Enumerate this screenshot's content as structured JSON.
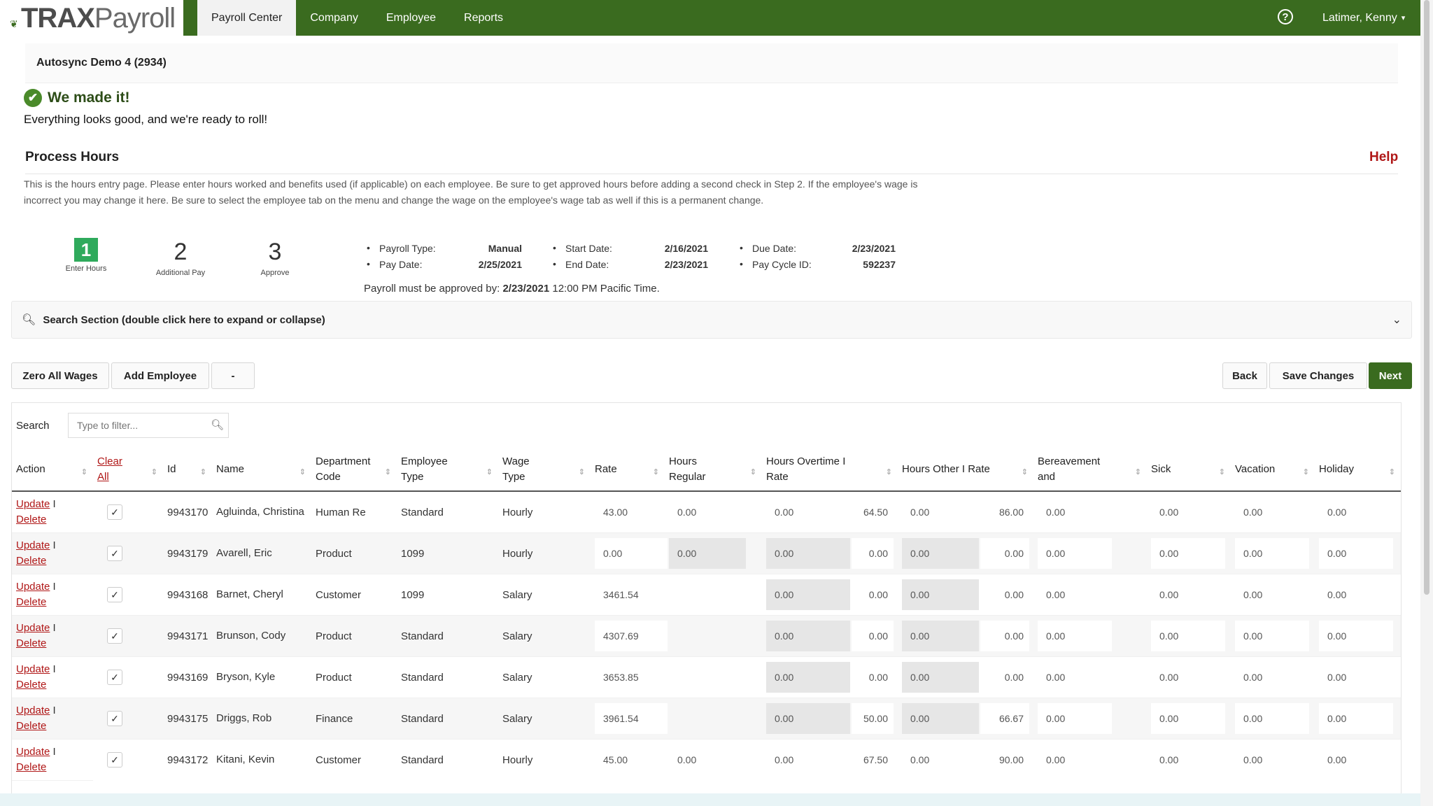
{
  "header": {
    "logo_bold": "TRAX",
    "logo_light": "Payroll",
    "nav": [
      "Payroll Center",
      "Company",
      "Employee",
      "Reports"
    ],
    "help_glyph": "?",
    "user": "Latimer, Kenny"
  },
  "company": "Autosync Demo 4 (2934)",
  "success": {
    "title": "We made it!",
    "subtitle": "Everything looks good, and we're ready to roll!"
  },
  "section": {
    "title": "Process Hours",
    "help": "Help",
    "description": "This is the hours entry page. Please enter hours worked and benefits used (if applicable) on each employee. Be sure to get approved hours before adding a second check in Step 2. If the employee's wage is incorrect you may change it here. Be sure to select the employee tab on the menu and change the wage on the employee's wage tab as well if this is a permanent change."
  },
  "steps": [
    {
      "num": "1",
      "label": "Enter Hours"
    },
    {
      "num": "2",
      "label": "Additional Pay"
    },
    {
      "num": "3",
      "label": "Approve"
    }
  ],
  "payroll_info": {
    "payroll_type_label": "Payroll Type:",
    "payroll_type": "Manual",
    "pay_date_label": "Pay Date:",
    "pay_date": "2/25/2021",
    "start_date_label": "Start Date:",
    "start_date": "2/16/2021",
    "end_date_label": "End Date:",
    "end_date": "2/23/2021",
    "due_date_label": "Due Date:",
    "due_date": "2/23/2021",
    "pay_cycle_label": "Pay Cycle ID:",
    "pay_cycle": "592237",
    "approve_prefix": "Payroll must be approved by:",
    "approve_date": "2/23/2021",
    "approve_suffix": "12:00 PM Pacific Time."
  },
  "search_section": "Search Section (double click here to expand or collapse)",
  "toolbar": {
    "zero_wages": "Zero All Wages",
    "add_employee": "Add Employee",
    "dropdown": "-",
    "back": "Back",
    "save": "Save Changes",
    "next": "Next"
  },
  "filter": {
    "label": "Search",
    "placeholder": "Type to filter..."
  },
  "table": {
    "headers": {
      "action": "Action",
      "clear_all": "Clear All",
      "id": "Id",
      "name": "Name",
      "dept": "Department Code",
      "emp_type": "Employee Type",
      "wage_type": "Wage Type",
      "rate": "Rate",
      "hours_regular": "Hours Regular",
      "hours_ot": "Hours Overtime I Rate",
      "hours_other": "Hours Other I Rate",
      "bereavement": "Bereavement and",
      "sick": "Sick",
      "vacation": "Vacation",
      "holiday": "Holiday"
    },
    "update_label": "Update",
    "delete_label": "Delete",
    "rows": [
      {
        "id": "9943170",
        "name": "Agluinda, Christina",
        "dept": "Human Re",
        "emp_type": "Standard",
        "wage_type": "Hourly",
        "rate": "43.00",
        "hours_regular": "0.00",
        "ot_hours": "0.00",
        "ot_rate": "64.50",
        "other_hours": "0.00",
        "other_rate": "86.00",
        "bereavement": "0.00",
        "sick": "0.00",
        "vacation": "0.00",
        "holiday": "0.00"
      },
      {
        "id": "9943179",
        "name": "Avarell, Eric",
        "dept": "Product",
        "emp_type": "1099",
        "wage_type": "Hourly",
        "rate": "0.00",
        "hours_regular": "0.00",
        "ot_hours": "0.00",
        "ot_rate": "0.00",
        "other_hours": "0.00",
        "other_rate": "0.00",
        "bereavement": "0.00",
        "sick": "0.00",
        "vacation": "0.00",
        "holiday": "0.00"
      },
      {
        "id": "9943168",
        "name": "Barnet, Cheryl",
        "dept": "Customer",
        "emp_type": "1099",
        "wage_type": "Salary",
        "rate": "3461.54",
        "hours_regular": "",
        "ot_hours": "0.00",
        "ot_rate": "0.00",
        "other_hours": "0.00",
        "other_rate": "0.00",
        "bereavement": "0.00",
        "sick": "0.00",
        "vacation": "0.00",
        "holiday": "0.00"
      },
      {
        "id": "9943171",
        "name": "Brunson, Cody",
        "dept": "Product",
        "emp_type": "Standard",
        "wage_type": "Salary",
        "rate": "4307.69",
        "hours_regular": "",
        "ot_hours": "0.00",
        "ot_rate": "0.00",
        "other_hours": "0.00",
        "other_rate": "0.00",
        "bereavement": "0.00",
        "sick": "0.00",
        "vacation": "0.00",
        "holiday": "0.00"
      },
      {
        "id": "9943169",
        "name": "Bryson, Kyle",
        "dept": "Product",
        "emp_type": "Standard",
        "wage_type": "Salary",
        "rate": "3653.85",
        "hours_regular": "",
        "ot_hours": "0.00",
        "ot_rate": "0.00",
        "other_hours": "0.00",
        "other_rate": "0.00",
        "bereavement": "0.00",
        "sick": "0.00",
        "vacation": "0.00",
        "holiday": "0.00"
      },
      {
        "id": "9943175",
        "name": "Driggs, Rob",
        "dept": "Finance",
        "emp_type": "Standard",
        "wage_type": "Salary",
        "rate": "3961.54",
        "hours_regular": "",
        "ot_hours": "0.00",
        "ot_rate": "50.00",
        "other_hours": "0.00",
        "other_rate": "66.67",
        "bereavement": "0.00",
        "sick": "0.00",
        "vacation": "0.00",
        "holiday": "0.00"
      },
      {
        "id": "9943172",
        "name": "Kitani, Kevin",
        "dept": "Customer",
        "emp_type": "Standard",
        "wage_type": "Hourly",
        "rate": "45.00",
        "hours_regular": "0.00",
        "ot_hours": "0.00",
        "ot_rate": "67.50",
        "other_hours": "0.00",
        "other_rate": "90.00",
        "bereavement": "0.00",
        "sick": "0.00",
        "vacation": "0.00",
        "holiday": "0.00"
      }
    ]
  },
  "colors": {
    "brand_green": "#3a6b1f",
    "link_red": "#b01717",
    "step_green": "#2faa5c"
  }
}
